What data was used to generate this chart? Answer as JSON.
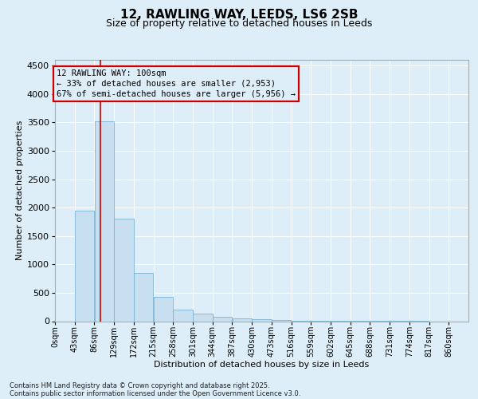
{
  "title1": "12, RAWLING WAY, LEEDS, LS6 2SB",
  "title2": "Size of property relative to detached houses in Leeds",
  "xlabel": "Distribution of detached houses by size in Leeds",
  "ylabel": "Number of detached properties",
  "footnote1": "Contains HM Land Registry data © Crown copyright and database right 2025.",
  "footnote2": "Contains public sector information licensed under the Open Government Licence v3.0.",
  "bar_color": "#c8dff0",
  "bar_edge_color": "#7ab2d4",
  "background_color": "#ddeef8",
  "grid_color": "#ffffff",
  "vline_color": "#cc0000",
  "vline_x": 100,
  "annotation_line1": "12 RAWLING WAY: 100sqm",
  "annotation_line2": "← 33% of detached houses are smaller (2,953)",
  "annotation_line3": "67% of semi-detached houses are larger (5,956) →",
  "annotation_box_color": "#cc0000",
  "bin_starts": [
    0,
    43,
    86,
    129,
    172,
    215,
    258,
    301,
    344,
    387,
    430,
    473,
    516,
    559,
    602,
    645,
    688,
    731,
    774,
    817
  ],
  "bin_width": 43,
  "values": [
    0,
    1950,
    3520,
    1810,
    850,
    430,
    200,
    135,
    75,
    55,
    35,
    20,
    12,
    7,
    4,
    3,
    2,
    1,
    1,
    0
  ],
  "categories": [
    "0sqm",
    "43sqm",
    "86sqm",
    "129sqm",
    "172sqm",
    "215sqm",
    "258sqm",
    "301sqm",
    "344sqm",
    "387sqm",
    "430sqm",
    "473sqm",
    "516sqm",
    "559sqm",
    "602sqm",
    "645sqm",
    "688sqm",
    "731sqm",
    "774sqm",
    "817sqm",
    "860sqm"
  ],
  "xlim": [
    0,
    903
  ],
  "ylim": [
    0,
    4600
  ],
  "yticks": [
    0,
    500,
    1000,
    1500,
    2000,
    2500,
    3000,
    3500,
    4000,
    4500
  ],
  "title1_fontsize": 11,
  "title2_fontsize": 9,
  "ylabel_fontsize": 8,
  "xlabel_fontsize": 8,
  "tick_fontsize": 8,
  "xtick_fontsize": 7,
  "annotation_fontsize": 7.5,
  "footnote_fontsize": 6
}
